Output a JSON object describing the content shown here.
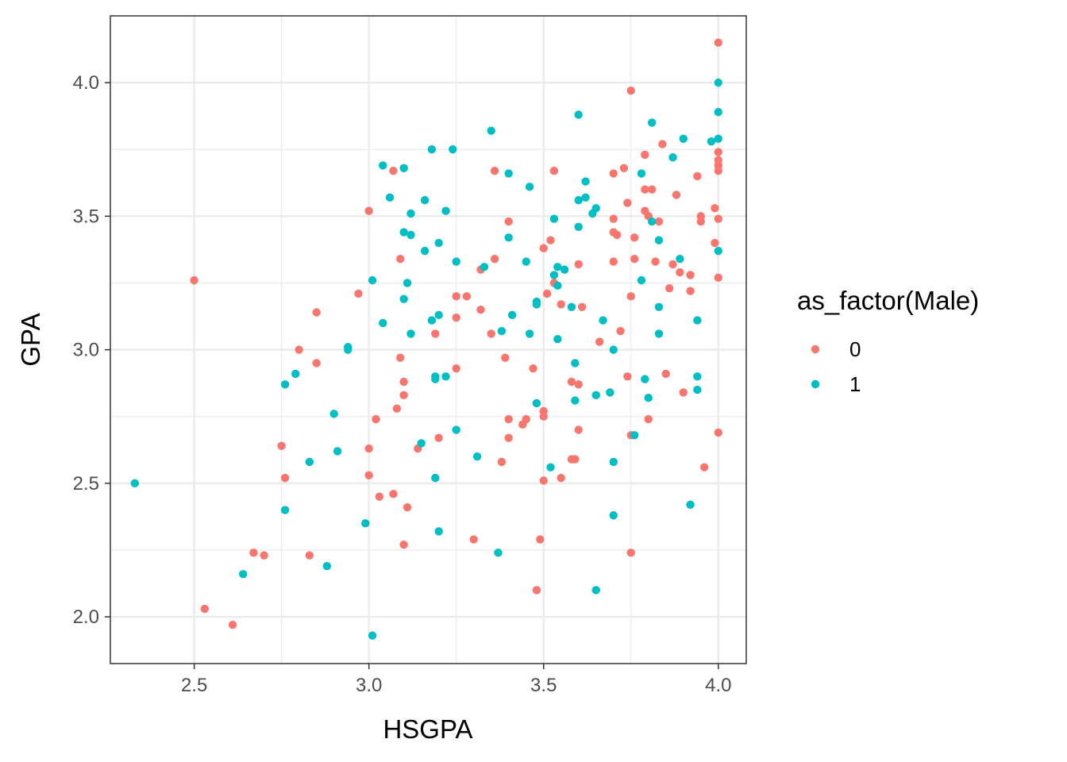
{
  "chart_data": {
    "type": "scatter",
    "title": "",
    "xlabel": "HSGPA",
    "ylabel": "GPA",
    "xlim": [
      2.26,
      4.08
    ],
    "ylim": [
      1.825,
      4.25
    ],
    "x_ticks": [
      2.5,
      3.0,
      3.5,
      4.0
    ],
    "x_tick_labels": [
      "2.5",
      "3.0",
      "3.5",
      "4.0"
    ],
    "y_ticks": [
      2.0,
      2.5,
      3.0,
      3.5,
      4.0
    ],
    "y_tick_labels": [
      "2.0",
      "2.5",
      "3.0",
      "3.5",
      "4.0"
    ],
    "grid": true,
    "legend": {
      "title": "as_factor(Male)",
      "placement": "right",
      "entries": [
        {
          "label": "0",
          "color": "#F8766D"
        },
        {
          "label": "1",
          "color": "#00BFC4"
        }
      ]
    },
    "series": [
      {
        "name": "0",
        "color": "#F8766D",
        "points": [
          [
            2.5,
            3.26
          ],
          [
            2.53,
            2.03
          ],
          [
            2.61,
            1.97
          ],
          [
            2.67,
            2.24
          ],
          [
            2.7,
            2.23
          ],
          [
            2.75,
            2.64
          ],
          [
            2.76,
            2.52
          ],
          [
            2.8,
            3.0
          ],
          [
            2.83,
            2.23
          ],
          [
            2.85,
            3.14
          ],
          [
            2.85,
            2.95
          ],
          [
            2.97,
            3.21
          ],
          [
            3.0,
            3.52
          ],
          [
            3.0,
            2.63
          ],
          [
            3.0,
            2.53
          ],
          [
            3.02,
            2.74
          ],
          [
            3.03,
            2.45
          ],
          [
            3.07,
            3.67
          ],
          [
            3.07,
            2.46
          ],
          [
            3.08,
            2.78
          ],
          [
            3.09,
            3.34
          ],
          [
            3.09,
            2.97
          ],
          [
            3.1,
            2.88
          ],
          [
            3.1,
            2.83
          ],
          [
            3.1,
            2.27
          ],
          [
            3.11,
            2.41
          ],
          [
            3.14,
            2.63
          ],
          [
            3.19,
            3.06
          ],
          [
            3.2,
            2.67
          ],
          [
            3.25,
            3.2
          ],
          [
            3.25,
            3.12
          ],
          [
            3.25,
            2.93
          ],
          [
            3.28,
            3.2
          ],
          [
            3.3,
            2.29
          ],
          [
            3.32,
            3.3
          ],
          [
            3.32,
            3.15
          ],
          [
            3.35,
            3.06
          ],
          [
            3.36,
            3.67
          ],
          [
            3.36,
            3.34
          ],
          [
            3.38,
            2.58
          ],
          [
            3.39,
            2.97
          ],
          [
            3.4,
            3.48
          ],
          [
            3.4,
            2.74
          ],
          [
            3.4,
            2.67
          ],
          [
            3.44,
            2.72
          ],
          [
            3.45,
            2.74
          ],
          [
            3.47,
            2.93
          ],
          [
            3.48,
            2.1
          ],
          [
            3.49,
            2.29
          ],
          [
            3.5,
            3.38
          ],
          [
            3.5,
            2.77
          ],
          [
            3.5,
            2.75
          ],
          [
            3.5,
            2.51
          ],
          [
            3.51,
            3.21
          ],
          [
            3.52,
            3.41
          ],
          [
            3.53,
            3.67
          ],
          [
            3.53,
            3.25
          ],
          [
            3.55,
            3.17
          ],
          [
            3.55,
            2.52
          ],
          [
            3.58,
            2.88
          ],
          [
            3.58,
            2.59
          ],
          [
            3.59,
            2.59
          ],
          [
            3.6,
            3.32
          ],
          [
            3.6,
            2.87
          ],
          [
            3.6,
            2.7
          ],
          [
            3.61,
            3.16
          ],
          [
            3.66,
            3.03
          ],
          [
            3.7,
            3.66
          ],
          [
            3.7,
            3.49
          ],
          [
            3.7,
            3.44
          ],
          [
            3.7,
            3.33
          ],
          [
            3.71,
            3.43
          ],
          [
            3.72,
            3.07
          ],
          [
            3.73,
            3.68
          ],
          [
            3.74,
            3.55
          ],
          [
            3.74,
            2.9
          ],
          [
            3.75,
            3.97
          ],
          [
            3.75,
            3.2
          ],
          [
            3.75,
            2.68
          ],
          [
            3.75,
            2.24
          ],
          [
            3.76,
            3.42
          ],
          [
            3.76,
            3.34
          ],
          [
            3.79,
            3.73
          ],
          [
            3.79,
            3.6
          ],
          [
            3.79,
            3.52
          ],
          [
            3.8,
            3.5
          ],
          [
            3.8,
            2.74
          ],
          [
            3.81,
            3.6
          ],
          [
            3.82,
            3.33
          ],
          [
            3.83,
            3.48
          ],
          [
            3.84,
            3.77
          ],
          [
            3.85,
            2.91
          ],
          [
            3.86,
            3.23
          ],
          [
            3.87,
            3.32
          ],
          [
            3.88,
            3.58
          ],
          [
            3.89,
            3.29
          ],
          [
            3.9,
            2.84
          ],
          [
            3.92,
            3.28
          ],
          [
            3.92,
            3.22
          ],
          [
            3.94,
            3.65
          ],
          [
            3.95,
            3.5
          ],
          [
            3.95,
            3.48
          ],
          [
            3.96,
            2.56
          ],
          [
            3.99,
            3.53
          ],
          [
            3.99,
            3.4
          ],
          [
            4.0,
            4.15
          ],
          [
            4.0,
            3.74
          ],
          [
            4.0,
            3.71
          ],
          [
            4.0,
            3.69
          ],
          [
            4.0,
            3.67
          ],
          [
            4.0,
            3.49
          ],
          [
            4.0,
            3.27
          ],
          [
            4.0,
            2.69
          ]
        ]
      },
      {
        "name": "1",
        "color": "#00BFC4",
        "points": [
          [
            2.33,
            2.5
          ],
          [
            2.64,
            2.16
          ],
          [
            2.76,
            2.87
          ],
          [
            2.76,
            2.4
          ],
          [
            2.79,
            2.91
          ],
          [
            2.83,
            2.58
          ],
          [
            2.88,
            2.19
          ],
          [
            2.9,
            2.76
          ],
          [
            2.91,
            2.62
          ],
          [
            2.94,
            3.01
          ],
          [
            2.94,
            3.0
          ],
          [
            2.99,
            2.35
          ],
          [
            3.01,
            3.26
          ],
          [
            3.01,
            1.93
          ],
          [
            3.04,
            3.69
          ],
          [
            3.04,
            3.1
          ],
          [
            3.06,
            3.57
          ],
          [
            3.1,
            3.68
          ],
          [
            3.1,
            3.44
          ],
          [
            3.1,
            3.19
          ],
          [
            3.11,
            3.25
          ],
          [
            3.12,
            3.51
          ],
          [
            3.12,
            3.43
          ],
          [
            3.12,
            3.06
          ],
          [
            3.15,
            2.65
          ],
          [
            3.16,
            3.56
          ],
          [
            3.16,
            3.37
          ],
          [
            3.18,
            3.75
          ],
          [
            3.18,
            3.11
          ],
          [
            3.19,
            2.9
          ],
          [
            3.19,
            2.89
          ],
          [
            3.19,
            2.52
          ],
          [
            3.2,
            3.4
          ],
          [
            3.2,
            3.13
          ],
          [
            3.2,
            2.32
          ],
          [
            3.22,
            3.52
          ],
          [
            3.22,
            2.9
          ],
          [
            3.24,
            3.75
          ],
          [
            3.25,
            3.33
          ],
          [
            3.25,
            2.7
          ],
          [
            3.31,
            2.6
          ],
          [
            3.33,
            3.31
          ],
          [
            3.35,
            3.82
          ],
          [
            3.37,
            2.24
          ],
          [
            3.38,
            3.07
          ],
          [
            3.4,
            3.66
          ],
          [
            3.4,
            3.42
          ],
          [
            3.41,
            3.13
          ],
          [
            3.45,
            3.33
          ],
          [
            3.46,
            3.61
          ],
          [
            3.46,
            3.06
          ],
          [
            3.48,
            3.18
          ],
          [
            3.48,
            3.17
          ],
          [
            3.48,
            2.8
          ],
          [
            3.52,
            2.56
          ],
          [
            3.53,
            3.49
          ],
          [
            3.53,
            3.28
          ],
          [
            3.54,
            3.31
          ],
          [
            3.54,
            3.24
          ],
          [
            3.54,
            3.04
          ],
          [
            3.56,
            3.3
          ],
          [
            3.58,
            3.16
          ],
          [
            3.59,
            2.95
          ],
          [
            3.59,
            2.81
          ],
          [
            3.6,
            3.88
          ],
          [
            3.6,
            3.56
          ],
          [
            3.6,
            3.46
          ],
          [
            3.62,
            3.63
          ],
          [
            3.62,
            3.57
          ],
          [
            3.64,
            3.51
          ],
          [
            3.65,
            3.53
          ],
          [
            3.65,
            2.83
          ],
          [
            3.65,
            2.1
          ],
          [
            3.67,
            3.11
          ],
          [
            3.69,
            2.84
          ],
          [
            3.7,
            3.0
          ],
          [
            3.7,
            2.58
          ],
          [
            3.7,
            2.38
          ],
          [
            3.76,
            2.68
          ],
          [
            3.78,
            3.66
          ],
          [
            3.78,
            3.26
          ],
          [
            3.79,
            2.89
          ],
          [
            3.8,
            2.82
          ],
          [
            3.81,
            3.85
          ],
          [
            3.81,
            3.48
          ],
          [
            3.83,
            3.41
          ],
          [
            3.83,
            3.16
          ],
          [
            3.83,
            3.06
          ],
          [
            3.87,
            3.72
          ],
          [
            3.89,
            3.34
          ],
          [
            3.9,
            3.79
          ],
          [
            3.92,
            2.42
          ],
          [
            3.94,
            3.11
          ],
          [
            3.94,
            2.9
          ],
          [
            3.94,
            2.85
          ],
          [
            3.98,
            3.78
          ],
          [
            4.0,
            4.0
          ],
          [
            4.0,
            3.89
          ],
          [
            4.0,
            3.79
          ],
          [
            4.0,
            3.37
          ]
        ]
      }
    ]
  }
}
